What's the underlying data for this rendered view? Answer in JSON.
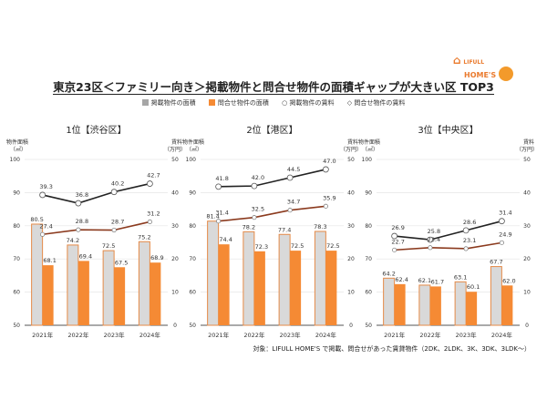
{
  "title": "東京23区＜ファミリー向き＞掲載物件と問合せ物件の面積ギャップが大きい区 TOP3",
  "logo": {
    "line1": "LIFULL",
    "line2": "HOME'S"
  },
  "legend": [
    "掲載物件の面積",
    "問合せ物件の面積",
    "掲載物件の賃料",
    "問合せ物件の賃料"
  ],
  "colors": {
    "listed_area": "#d9d9d9",
    "listed_area_border": "#e58a47",
    "inquiry_area": "#f58a34",
    "listed_rent": "#222222",
    "inquiry_rent": "#8b3a1e"
  },
  "footnote": "対象：LIFULL HOME'S で掲載、問合せがあった賃貸物件（2DK、2LDK、3K、3DK、3LDK～）",
  "chart_data": [
    {
      "type": "bar+line",
      "title": "1位【渋谷区】",
      "ylabel_left": "物件面積",
      "ylabel_left_unit": "（㎡）",
      "ylabel_right": "賃料",
      "ylabel_right_unit": "（万円）",
      "categories": [
        "2021年",
        "2022年",
        "2023年",
        "2024年"
      ],
      "ylim_left": [
        50,
        100
      ],
      "yticks_left": [
        50,
        60,
        70,
        80,
        90,
        100
      ],
      "ylim_right": [
        0,
        50
      ],
      "yticks_right": [
        0,
        10,
        20,
        30,
        40,
        50
      ],
      "grid": true,
      "series": [
        {
          "name": "掲載物件の面積",
          "values": [
            80.5,
            74.2,
            72.5,
            75.2
          ]
        },
        {
          "name": "問合せ物件の面積",
          "values": [
            68.1,
            69.4,
            67.5,
            68.9
          ]
        },
        {
          "name": "掲載物件の賃料",
          "values": [
            39.3,
            36.8,
            40.2,
            42.7
          ]
        },
        {
          "name": "問合せ物件の賃料",
          "values": [
            27.4,
            28.8,
            28.7,
            31.2
          ]
        }
      ]
    },
    {
      "type": "bar+line",
      "title": "2位【港区】",
      "ylabel_left": "物件面積",
      "ylabel_left_unit": "（㎡）",
      "ylabel_right": "賃料",
      "ylabel_right_unit": "（万円）",
      "categories": [
        "2021年",
        "2022年",
        "2023年",
        "2024年"
      ],
      "ylim_left": [
        50,
        100
      ],
      "yticks_left": [
        50,
        60,
        70,
        80,
        90,
        100
      ],
      "ylim_right": [
        0,
        50
      ],
      "yticks_right": [
        0,
        10,
        20,
        30,
        40,
        50
      ],
      "grid": true,
      "series": [
        {
          "name": "掲載物件の面積",
          "values": [
            81.4,
            78.2,
            77.4,
            78.3
          ]
        },
        {
          "name": "問合せ物件の面積",
          "values": [
            74.4,
            72.3,
            72.5,
            72.5
          ]
        },
        {
          "name": "掲載物件の賃料",
          "values": [
            41.8,
            42.0,
            44.5,
            47.0
          ]
        },
        {
          "name": "問合せ物件の賃料",
          "values": [
            31.4,
            32.5,
            34.7,
            35.9
          ]
        }
      ]
    },
    {
      "type": "bar+line",
      "title": "3位【中央区】",
      "ylabel_left": "物件面積",
      "ylabel_left_unit": "（㎡）",
      "ylabel_right": "賃料",
      "ylabel_right_unit": "（万円）",
      "categories": [
        "2021年",
        "2022年",
        "2023年",
        "2024年"
      ],
      "ylim_left": [
        50,
        100
      ],
      "yticks_left": [
        50,
        60,
        70,
        80,
        90,
        100
      ],
      "ylim_right": [
        0,
        50
      ],
      "yticks_right": [
        0,
        10,
        20,
        30,
        40,
        50
      ],
      "grid": true,
      "series": [
        {
          "name": "掲載物件の面積",
          "values": [
            64.2,
            62.1,
            63.1,
            67.7
          ]
        },
        {
          "name": "問合せ物件の面積",
          "values": [
            62.4,
            61.7,
            60.1,
            62.0
          ]
        },
        {
          "name": "掲載物件の賃料",
          "values": [
            26.9,
            25.8,
            28.6,
            31.4
          ]
        },
        {
          "name": "問合せ物件の賃料",
          "values": [
            22.7,
            23.4,
            23.1,
            24.9
          ]
        }
      ]
    }
  ]
}
